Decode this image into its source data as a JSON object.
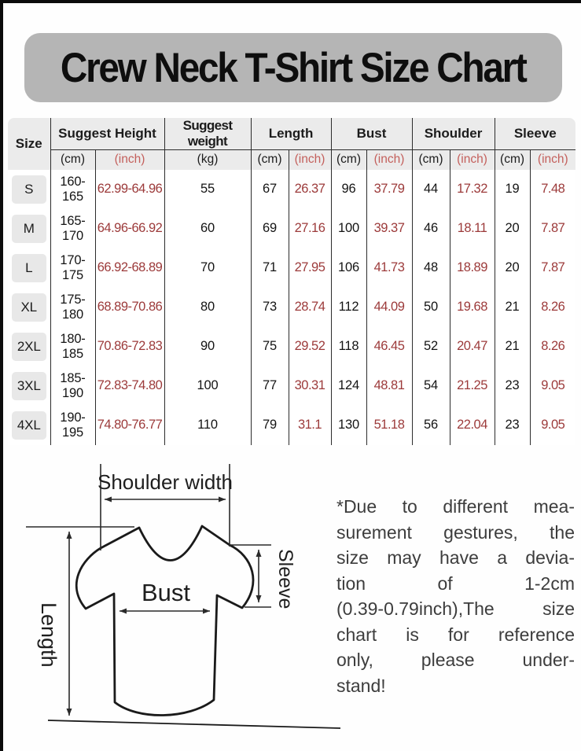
{
  "title": {
    "text": "Crew Neck T-Shirt Size Chart"
  },
  "colors": {
    "banner_gray": "#b5b5b5",
    "header_gray": "#ebebeb",
    "size_pill_gray": "#e8e8e8",
    "table_line": "#2c2c2c",
    "inch_value_red": "#9c3a3a",
    "header_inch_red": "#c4605c",
    "text_black": "#141414"
  },
  "table": {
    "header": {
      "size": "Size",
      "groups": [
        {
          "label": "Suggest Height",
          "units": [
            "(cm)",
            "(inch)"
          ]
        },
        {
          "label": "Suggest weight",
          "units": [
            "(kg)"
          ]
        },
        {
          "label": "Length",
          "units": [
            "(cm)",
            "(inch)"
          ]
        },
        {
          "label": "Bust",
          "units": [
            "(cm)",
            "(inch)"
          ]
        },
        {
          "label": "Shoulder",
          "units": [
            "(cm)",
            "(inch)"
          ]
        },
        {
          "label": "Sleeve",
          "units": [
            "(cm)",
            "(inch)"
          ]
        }
      ]
    }
  },
  "chart_data": {
    "type": "table",
    "title": "Crew Neck T-Shirt Size Chart",
    "columns": [
      "Size",
      "Suggest Height (cm)",
      "Suggest Height (inch)",
      "Suggest weight (kg)",
      "Length (cm)",
      "Length (inch)",
      "Bust (cm)",
      "Bust (inch)",
      "Shoulder (cm)",
      "Shoulder (inch)",
      "Sleeve (cm)",
      "Sleeve (inch)"
    ],
    "rows": [
      [
        "S",
        "160-165",
        "62.99-64.96",
        "55",
        "67",
        "26.37",
        "96",
        "37.79",
        "44",
        "17.32",
        "19",
        "7.48"
      ],
      [
        "M",
        "165-170",
        "64.96-66.92",
        "60",
        "69",
        "27.16",
        "100",
        "39.37",
        "46",
        "18.11",
        "20",
        "7.87"
      ],
      [
        "L",
        "170-175",
        "66.92-68.89",
        "70",
        "71",
        "27.95",
        "106",
        "41.73",
        "48",
        "18.89",
        "20",
        "7.87"
      ],
      [
        "XL",
        "175-180",
        "68.89-70.86",
        "80",
        "73",
        "28.74",
        "112",
        "44.09",
        "50",
        "19.68",
        "21",
        "8.26"
      ],
      [
        "2XL",
        "180-185",
        "70.86-72.83",
        "90",
        "75",
        "29.52",
        "118",
        "46.45",
        "52",
        "20.47",
        "21",
        "8.26"
      ],
      [
        "3XL",
        "185-190",
        "72.83-74.80",
        "100",
        "77",
        "30.31",
        "124",
        "48.81",
        "54",
        "21.25",
        "23",
        "9.05"
      ],
      [
        "4XL",
        "190-195",
        "74.80-76.77",
        "110",
        "79",
        "31.1",
        "130",
        "51.18",
        "56",
        "22.04",
        "23",
        "9.05"
      ]
    ]
  },
  "diagram": {
    "labels": {
      "shoulder": "Shoulder width",
      "sleeve": "Sleeve",
      "bust": "Bust",
      "length": "Length"
    }
  },
  "disclaimer": {
    "lines": [
      "*Due to different mea-",
      "surement gestures, the",
      "size may have a devia-",
      "tion of 1-2cm",
      "(0.39-0.79inch),The size",
      "chart is for reference",
      "only, please under-",
      "stand!"
    ]
  }
}
